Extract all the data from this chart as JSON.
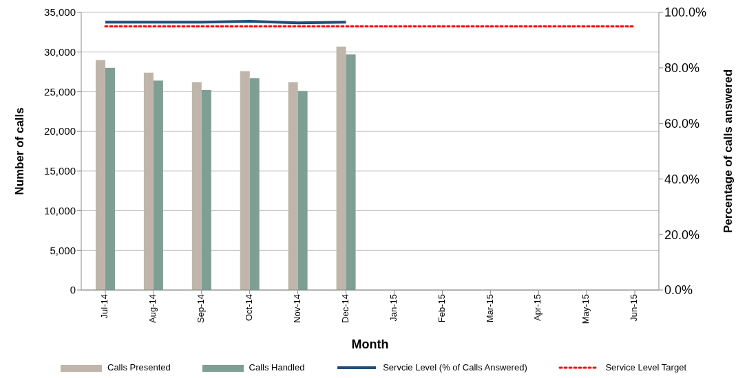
{
  "chart_data": {
    "type": "bar",
    "xlabel": "Month",
    "ylabel": "Number of calls",
    "y2label": "Percentage of calls answered",
    "categories": [
      "Jul-14",
      "Aug-14",
      "Sep-14",
      "Oct-14",
      "Nov-14",
      "Dec-14",
      "Jan-15",
      "Feb-15",
      "Mar-15",
      "Apr-15",
      "May-15",
      "Jun-15"
    ],
    "series": [
      {
        "name": "Calls Presented",
        "color": "#bfb5aa",
        "values": [
          29000,
          27400,
          26200,
          27600,
          26200,
          30700,
          null,
          null,
          null,
          null,
          null,
          null
        ]
      },
      {
        "name": "Calls Handled",
        "color": "#7f9f94",
        "values": [
          28000,
          26400,
          25200,
          26700,
          25100,
          29700,
          null,
          null,
          null,
          null,
          null,
          null
        ]
      },
      {
        "name": "Servcie Level (% of Calls Answered)",
        "type": "line",
        "axis": "y2",
        "color": "#1f4e79",
        "line_style": "solid",
        "values": [
          96.5,
          96.5,
          96.5,
          96.8,
          96.2,
          96.5,
          null,
          null,
          null,
          null,
          null,
          null
        ]
      },
      {
        "name": "Service Level Target",
        "type": "line",
        "axis": "y2",
        "color": "#ff0000",
        "line_style": "dotted",
        "values": [
          95,
          95,
          95,
          95,
          95,
          95,
          95,
          95,
          95,
          95,
          95,
          95
        ]
      }
    ],
    "ylim": [
      0,
      35000
    ],
    "yticks": [
      {
        "value": 0,
        "label": "0"
      },
      {
        "value": 5000,
        "label": "5,000"
      },
      {
        "value": 10000,
        "label": "10,000"
      },
      {
        "value": 15000,
        "label": "15,000"
      },
      {
        "value": 20000,
        "label": "20,000"
      },
      {
        "value": 25000,
        "label": "25,000"
      },
      {
        "value": 30000,
        "label": "30,000"
      },
      {
        "value": 35000,
        "label": "35,000"
      }
    ],
    "y2lim": [
      0,
      100
    ],
    "y2ticks": [
      {
        "value": 0,
        "label": "0.0%"
      },
      {
        "value": 20,
        "label": "20.0%"
      },
      {
        "value": 40,
        "label": "40.0%"
      },
      {
        "value": 60,
        "label": "60.0%"
      },
      {
        "value": 80,
        "label": "80.0%"
      },
      {
        "value": 100,
        "label": "100.0%"
      }
    ],
    "grid": "y",
    "legend": "bottom",
    "marker": "none"
  }
}
